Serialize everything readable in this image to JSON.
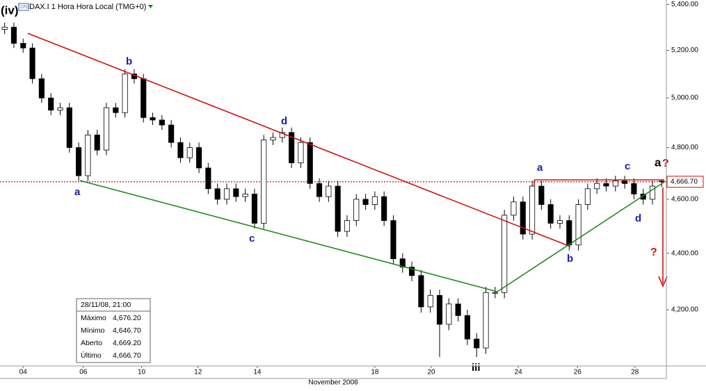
{
  "chart_data": {
    "type": "candlestick",
    "title": "DAX.I 1 Hora Hora Local (TMG+0)",
    "badge": "CFD",
    "x_axis_label": "November 2008",
    "log_scale": true,
    "up_color": "#ffffff",
    "down_color": "#000000",
    "xlim": [
      -0.5,
      71.5
    ],
    "xticks": [
      {
        "value": 2,
        "label": "04"
      },
      {
        "value": 8.5,
        "label": "06"
      },
      {
        "value": 14.8,
        "label": "10"
      },
      {
        "value": 20.9,
        "label": "12"
      },
      {
        "value": 27.3,
        "label": "14"
      },
      {
        "value": 40,
        "label": "18"
      },
      {
        "value": 46.1,
        "label": "20"
      },
      {
        "value": 55.5,
        "label": "24"
      },
      {
        "value": 61.9,
        "label": "26"
      },
      {
        "value": 68.1,
        "label": "28"
      }
    ],
    "ylim": [
      4010,
      5420
    ],
    "yticks": [
      {
        "value": 4200,
        "label": "4,200.00"
      },
      {
        "value": 4400,
        "label": "4,400.00"
      },
      {
        "value": 4600,
        "label": "4,600.00"
      },
      {
        "value": 4800,
        "label": "4,800.00"
      },
      {
        "value": 5000,
        "label": "5,000.00"
      },
      {
        "value": 5200,
        "label": "5,200.00"
      },
      {
        "value": 5400,
        "label": "5,400.00"
      }
    ],
    "last_price": {
      "value": 4666.7,
      "label": "4,666.70"
    },
    "x": [
      0,
      1,
      2,
      3,
      4,
      5,
      6,
      7,
      8,
      9,
      10,
      11,
      12,
      13,
      14,
      15,
      16,
      17,
      18,
      19,
      20,
      21,
      22,
      23,
      24,
      25,
      26,
      27,
      28,
      29,
      30,
      31,
      32,
      33,
      34,
      35,
      36,
      37,
      38,
      39,
      40,
      41,
      42,
      43,
      44,
      45,
      46,
      47,
      48,
      49,
      50,
      51,
      52,
      53,
      54,
      55,
      56,
      57,
      58,
      59,
      60,
      61,
      62,
      63,
      64,
      65,
      66,
      67,
      68,
      69,
      70,
      71
    ],
    "open": [
      5290,
      5300,
      5230,
      5210,
      5080,
      5000,
      4950,
      4960,
      4800,
      4690,
      4850,
      4790,
      4960,
      4940,
      5100,
      5080,
      4920,
      4910,
      4890,
      4820,
      4760,
      4800,
      4720,
      4640,
      4600,
      4640,
      4610,
      4620,
      4510,
      4830,
      4840,
      4860,
      4740,
      4820,
      4660,
      4610,
      4650,
      4480,
      4520,
      4600,
      4580,
      4610,
      4520,
      4380,
      4350,
      4320,
      4210,
      4250,
      4150,
      4220,
      4180,
      4100,
      4070,
      4260,
      4260,
      4540,
      4590,
      4470,
      4650,
      4580,
      4510,
      4520,
      4430,
      4580,
      4640,
      4660,
      4650,
      4670,
      4660,
      4620,
      4600,
      4669.2
    ],
    "high": [
      5320,
      5320,
      5250,
      5230,
      5100,
      5020,
      4980,
      4980,
      4820,
      4870,
      4870,
      4980,
      4980,
      5120,
      5120,
      5100,
      4940,
      4930,
      4910,
      4840,
      4820,
      4820,
      4740,
      4660,
      4660,
      4660,
      4640,
      4640,
      4850,
      4860,
      4880,
      4880,
      4840,
      4840,
      4680,
      4670,
      4670,
      4540,
      4620,
      4620,
      4630,
      4630,
      4540,
      4400,
      4370,
      4340,
      4270,
      4270,
      4240,
      4240,
      4200,
      4120,
      4280,
      4280,
      4560,
      4610,
      4610,
      4670,
      4670,
      4600,
      4540,
      4540,
      4600,
      4660,
      4680,
      4680,
      4690,
      4690,
      4680,
      4640,
      4670,
      4676.2
    ],
    "low": [
      5270,
      5210,
      5190,
      5060,
      4980,
      4930,
      4930,
      4780,
      4670,
      4670,
      4770,
      4770,
      4920,
      4920,
      5060,
      4900,
      4890,
      4870,
      4800,
      4740,
      4740,
      4700,
      4620,
      4580,
      4580,
      4590,
      4590,
      4490,
      4490,
      4810,
      4820,
      4720,
      4720,
      4640,
      4590,
      4590,
      4460,
      4460,
      4500,
      4560,
      4560,
      4500,
      4360,
      4330,
      4300,
      4190,
      4190,
      4040,
      4130,
      4160,
      4080,
      4040,
      4050,
      4240,
      4240,
      4520,
      4450,
      4450,
      4560,
      4490,
      4490,
      4410,
      4410,
      4560,
      4620,
      4630,
      4630,
      4640,
      4600,
      4580,
      4580,
      4646.7
    ],
    "close": [
      5300,
      5230,
      5210,
      5080,
      5000,
      4950,
      4960,
      4800,
      4690,
      4850,
      4790,
      4960,
      4940,
      5100,
      5080,
      4920,
      4910,
      4890,
      4820,
      4760,
      4800,
      4720,
      4640,
      4600,
      4640,
      4610,
      4620,
      4510,
      4830,
      4840,
      4860,
      4740,
      4820,
      4660,
      4610,
      4650,
      4480,
      4520,
      4600,
      4580,
      4610,
      4520,
      4380,
      4350,
      4320,
      4210,
      4250,
      4150,
      4220,
      4180,
      4100,
      4070,
      4260,
      4260,
      4540,
      4590,
      4470,
      4650,
      4580,
      4510,
      4520,
      4430,
      4580,
      4640,
      4660,
      4650,
      4670,
      4660,
      4620,
      4600,
      4650,
      4666.7
    ],
    "wave_labels": [
      "(iv)",
      "a",
      "b",
      "c",
      "d",
      "iii",
      "a",
      "b",
      "c",
      "d",
      "a",
      "?",
      "?"
    ],
    "info_box": {
      "date": "28/11/08, 21:00",
      "rows": [
        [
          "Máximo",
          "4,676.20"
        ],
        [
          "Mínimo",
          "4,646.70"
        ],
        [
          "Aberto",
          "4,669.20"
        ],
        [
          "Último",
          "4,666.70"
        ]
      ]
    }
  }
}
